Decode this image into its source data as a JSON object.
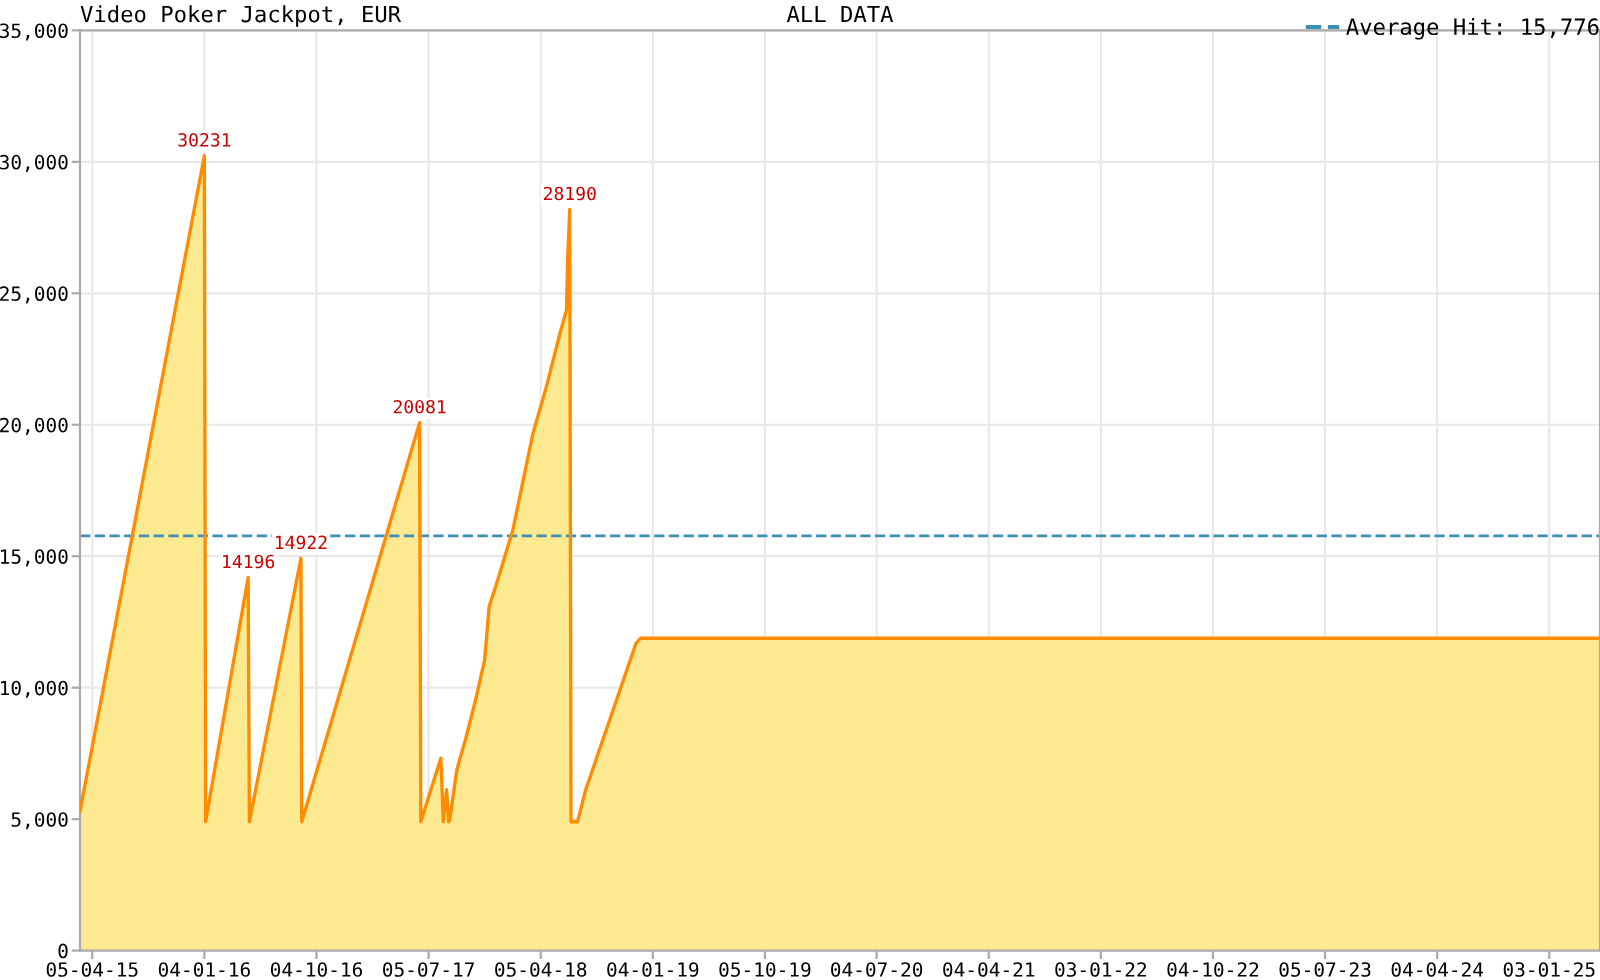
{
  "chart_data": {
    "type": "area",
    "title": "Video Poker Jackpot, EUR",
    "subtitle": "ALL DATA",
    "x": [
      "2015-03-06",
      "2016-01-04",
      "2016-01-07",
      "2016-04-20",
      "2016-04-23",
      "2016-08-27",
      "2016-08-29",
      "2017-06-13",
      "2017-06-16",
      "2017-08-04",
      "2017-08-10",
      "2017-08-18",
      "2017-08-23",
      "2017-08-26",
      "2017-09-12",
      "2017-10-03",
      "2017-10-28",
      "2017-11-19",
      "2017-11-30",
      "2017-12-16",
      "2018-01-27",
      "2018-03-17",
      "2018-04-19",
      "2018-05-22",
      "2018-06-07",
      "2018-06-10",
      "2018-06-15",
      "2018-06-18",
      "2018-07-04",
      "2018-07-24",
      "2018-11-24",
      "2018-12-05",
      "2025-05-07"
    ],
    "series": [
      {
        "color": "#ff8c00",
        "values": [
          5300,
          30231,
          4900,
          14196,
          4900,
          14922,
          4900,
          20081,
          4900,
          7320,
          4900,
          6120,
          4900,
          5000,
          6880,
          8020,
          9540,
          11060,
          13090,
          13850,
          16000,
          19670,
          21450,
          23470,
          24360,
          26390,
          28190,
          4900,
          4900,
          6120,
          11690,
          11880,
          11880
        ]
      }
    ],
    "annotations": [
      {
        "text": "30231",
        "x": "2016-01-04",
        "y": 30231
      },
      {
        "text": "14196",
        "x": "2016-04-20",
        "y": 14196
      },
      {
        "text": "14922",
        "x": "2016-08-27",
        "y": 14922
      },
      {
        "text": "20081",
        "x": "2017-06-13",
        "y": 20081
      },
      {
        "text": "28190",
        "x": "2018-06-15",
        "y": 28190
      }
    ],
    "ref_lines": [
      {
        "axis": "y",
        "value": 15776,
        "label": "Average Hit: 15,776",
        "color": "#3d8fb8",
        "line_style": "dashed"
      }
    ],
    "xlim": [
      "2015-03-06",
      "2025-05-07"
    ],
    "xticks": [
      {
        "value": "2015-04-05",
        "label": "05-04-15"
      },
      {
        "value": "2016-01-04",
        "label": "04-01-16"
      },
      {
        "value": "2016-10-04",
        "label": "04-10-16"
      },
      {
        "value": "2017-07-05",
        "label": "05-07-17"
      },
      {
        "value": "2018-04-05",
        "label": "05-04-18"
      },
      {
        "value": "2019-01-04",
        "label": "04-01-19"
      },
      {
        "value": "2019-10-05",
        "label": "05-10-19"
      },
      {
        "value": "2020-07-04",
        "label": "04-07-20"
      },
      {
        "value": "2021-04-04",
        "label": "04-04-21"
      },
      {
        "value": "2022-01-03",
        "label": "03-01-22"
      },
      {
        "value": "2022-10-04",
        "label": "04-10-22"
      },
      {
        "value": "2023-07-05",
        "label": "05-07-23"
      },
      {
        "value": "2024-04-04",
        "label": "04-04-24"
      },
      {
        "value": "2025-01-03",
        "label": "03-01-25"
      }
    ],
    "ylim": [
      0,
      35000
    ],
    "yticks": [
      0,
      {
        "value": 5000,
        "label": "5,000"
      },
      {
        "value": 10000,
        "label": "10,000"
      },
      {
        "value": 15000,
        "label": "15,000"
      },
      {
        "value": 20000,
        "label": "20,000"
      },
      {
        "value": 25000,
        "label": "25,000"
      },
      {
        "value": 30000,
        "label": "30,000"
      },
      {
        "value": 35000,
        "label": "35,000"
      }
    ],
    "grid": true,
    "legend": "top right",
    "marker": "none",
    "line_style": "solid"
  }
}
